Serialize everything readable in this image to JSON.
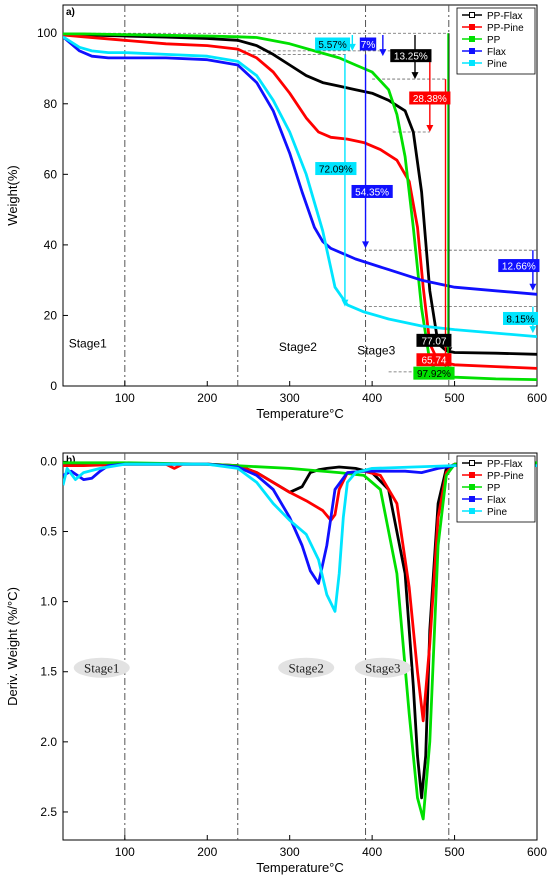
{
  "chart_data": [
    {
      "type": "line",
      "panel_label": "a)",
      "xlabel": "Temperature°C",
      "ylabel": "Weight(%)",
      "xlim": [
        25,
        600
      ],
      "ylim": [
        0,
        108
      ],
      "xticks": [
        100,
        200,
        300,
        400,
        500,
        600
      ],
      "yticks": [
        0,
        20,
        40,
        60,
        80,
        100
      ],
      "grid": false,
      "legend_position": "top-right",
      "stage_lines_x": [
        100,
        237,
        392,
        493
      ],
      "stages": [
        {
          "label": "Stage1",
          "x": 55,
          "y": 12
        },
        {
          "label": "Stage2",
          "x": 310,
          "y": 11
        },
        {
          "label": "Stage3",
          "x": 405,
          "y": 10
        }
      ],
      "series": [
        {
          "name": "PP-Flax",
          "color": "#000000",
          "x": [
            25,
            50,
            100,
            150,
            200,
            237,
            260,
            280,
            300,
            320,
            340,
            360,
            380,
            400,
            420,
            440,
            450,
            460,
            470,
            480,
            490,
            500,
            550,
            600
          ],
          "y": [
            99.7,
            99.5,
            99.2,
            98.9,
            98.5,
            98,
            96.5,
            94,
            91,
            88,
            86,
            85,
            84,
            83,
            81,
            78,
            72,
            55,
            27,
            12,
            10,
            9.5,
            9.3,
            9
          ]
        },
        {
          "name": "PP-Pine",
          "color": "#ff0000",
          "x": [
            25,
            50,
            100,
            150,
            200,
            237,
            260,
            280,
            300,
            320,
            335,
            350,
            370,
            390,
            410,
            430,
            445,
            455,
            462,
            470,
            480,
            500,
            550,
            600
          ],
          "y": [
            99.5,
            99,
            98,
            97,
            96.5,
            95.5,
            93,
            89,
            83,
            76,
            72,
            70.5,
            70,
            69,
            67,
            64,
            58,
            45,
            28,
            12,
            7,
            6,
            5.5,
            5
          ]
        },
        {
          "name": "PP",
          "color": "#00e000",
          "x": [
            25,
            50,
            100,
            150,
            200,
            237,
            260,
            300,
            330,
            360,
            380,
            400,
            420,
            430,
            440,
            450,
            460,
            470,
            480,
            490,
            500,
            550,
            600
          ],
          "y": [
            99.8,
            99.8,
            99.6,
            99.4,
            99.2,
            99,
            98.8,
            97,
            95,
            93,
            91,
            89,
            84,
            77,
            65,
            45,
            22,
            7,
            3.5,
            2.7,
            2.5,
            2,
            1.8
          ]
        },
        {
          "name": "Flax",
          "color": "#1010ff",
          "x": [
            25,
            35,
            45,
            60,
            80,
            100,
            150,
            200,
            237,
            260,
            280,
            300,
            315,
            330,
            340,
            350,
            380,
            420,
            460,
            500,
            550,
            600
          ],
          "y": [
            99,
            97,
            95,
            93.5,
            93,
            93,
            93,
            92.5,
            91,
            86,
            78,
            66,
            55,
            45,
            41,
            39,
            36,
            33,
            30,
            28,
            27,
            26
          ]
        },
        {
          "name": "Pine",
          "color": "#00e5ff",
          "x": [
            25,
            35,
            45,
            60,
            80,
            100,
            150,
            200,
            237,
            260,
            280,
            300,
            320,
            340,
            355,
            370,
            390,
            420,
            460,
            500,
            550,
            600
          ],
          "y": [
            99,
            97.5,
            96,
            95,
            94.5,
            94.5,
            94,
            93.5,
            92,
            88,
            81,
            72,
            60,
            44,
            28,
            23,
            21,
            19,
            17,
            16,
            15,
            14
          ]
        }
      ],
      "reference_lines": [
        {
          "y": 100,
          "x": [
            25,
            490
          ]
        },
        {
          "y": 95,
          "x": [
            237,
            430
          ]
        },
        {
          "y": 94,
          "x": [
            237,
            370
          ]
        },
        {
          "y": 87,
          "x": [
            400,
            490
          ]
        },
        {
          "y": 72,
          "x": [
            425,
            470
          ]
        },
        {
          "y": 38.5,
          "x": [
            390,
            600
          ]
        },
        {
          "y": 22.5,
          "x": [
            390,
            600
          ]
        },
        {
          "y": 4,
          "x": [
            420,
            500
          ]
        }
      ],
      "arrows": [
        {
          "color": "#00e5ff",
          "x": 376,
          "y_from": 99.5,
          "y_to": 95
        },
        {
          "color": "#1010ff",
          "x": 413,
          "y_from": 99.5,
          "y_to": 93.5
        },
        {
          "color": "#000000",
          "x": 452,
          "y_from": 99.5,
          "y_to": 87
        },
        {
          "color": "#ff0000",
          "x": 470,
          "y_from": 94,
          "y_to": 72
        },
        {
          "color": "#1010ff",
          "x": 392,
          "y_from": 94,
          "y_to": 39
        },
        {
          "color": "#00e5ff",
          "x": 367,
          "y_from": 94,
          "y_to": 22.5
        },
        {
          "color": "#1010ff",
          "x": 595,
          "y_from": 38.5,
          "y_to": 27
        },
        {
          "color": "#00e5ff",
          "x": 595,
          "y_from": 22.5,
          "y_to": 15
        },
        {
          "color": "#000000",
          "x": 493,
          "y_from": 100,
          "y_to": 9
        },
        {
          "color": "#ff0000",
          "x": 489,
          "y_from": 87,
          "y_to": 5
        },
        {
          "color": "#00e000",
          "x": 492,
          "y_from": 100,
          "y_to": 2.5
        }
      ],
      "annotations": [
        {
          "text": "5.57%",
          "bg": "#00e5ff",
          "fg": "#000000",
          "x": 352,
          "y": 96.8
        },
        {
          "text": "7%",
          "bg": "#1010ff",
          "fg": "#ffffff",
          "x": 395,
          "y": 96.8
        },
        {
          "text": "13.25%",
          "bg": "#000000",
          "fg": "#ffffff",
          "x": 447,
          "y": 93.5
        },
        {
          "text": "28.38%",
          "bg": "#ff0000",
          "fg": "#ffffff",
          "x": 470,
          "y": 81.5
        },
        {
          "text": "72.09%",
          "bg": "#00e5ff",
          "fg": "#000000",
          "x": 356,
          "y": 61.5
        },
        {
          "text": "54.35%",
          "bg": "#1010ff",
          "fg": "#ffffff",
          "x": 400,
          "y": 55
        },
        {
          "text": "12.66%",
          "bg": "#1010ff",
          "fg": "#ffffff",
          "x": 578,
          "y": 34
        },
        {
          "text": "8.15%",
          "bg": "#00e5ff",
          "fg": "#000000",
          "x": 580,
          "y": 19
        },
        {
          "text": "77.07",
          "bg": "#000000",
          "fg": "#ffffff",
          "x": 475,
          "y": 12.8
        },
        {
          "text": "65.74",
          "bg": "#ff0000",
          "fg": "#ffffff",
          "x": 475,
          "y": 7.3
        },
        {
          "text": "97.92%",
          "bg": "#00e000",
          "fg": "#000000",
          "x": 475,
          "y": 3.5
        }
      ]
    },
    {
      "type": "line",
      "panel_label": "b)",
      "xlabel": "Temperature°C",
      "ylabel": "Deriv. Weight (%/°C)",
      "xlim": [
        25,
        600
      ],
      "ylim": [
        -0.06,
        2.7
      ],
      "y_inverted": true,
      "xticks": [
        100,
        200,
        300,
        400,
        500,
        600
      ],
      "yticks": [
        0.0,
        0.5,
        1.0,
        1.5,
        2.0,
        2.5
      ],
      "grid": false,
      "legend_position": "top-right",
      "stage_lines_x": [
        100,
        237,
        392,
        493
      ],
      "stages": [
        {
          "label": "Stage1",
          "x": 72,
          "y": 1.5
        },
        {
          "label": "Stage2",
          "x": 320,
          "y": 1.5
        },
        {
          "label": "Stage3",
          "x": 413,
          "y": 1.5
        }
      ],
      "series": [
        {
          "name": "PP-Flax",
          "color": "#000000",
          "x": [
            25,
            50,
            100,
            150,
            200,
            237,
            260,
            280,
            300,
            315,
            325,
            335,
            345,
            360,
            380,
            400,
            420,
            440,
            450,
            455,
            460,
            465,
            470,
            480,
            490,
            500,
            550,
            600
          ],
          "y": [
            0.03,
            0.02,
            0.02,
            0.02,
            0.02,
            0.03,
            0.08,
            0.15,
            0.22,
            0.18,
            0.08,
            0.06,
            0.05,
            0.04,
            0.05,
            0.08,
            0.2,
            0.8,
            1.6,
            2.1,
            2.4,
            2.1,
            1.2,
            0.3,
            0.05,
            0.02,
            0.02,
            0.02
          ]
        },
        {
          "name": "PP-Pine",
          "color": "#ff0000",
          "x": [
            25,
            50,
            100,
            150,
            160,
            170,
            200,
            237,
            260,
            280,
            300,
            320,
            340,
            350,
            355,
            360,
            370,
            390,
            410,
            430,
            445,
            455,
            462,
            470,
            480,
            490,
            500,
            550,
            600
          ],
          "y": [
            0.03,
            0.03,
            0.02,
            0.02,
            0.05,
            0.02,
            0.02,
            0.03,
            0.08,
            0.15,
            0.22,
            0.28,
            0.35,
            0.42,
            0.38,
            0.2,
            0.08,
            0.07,
            0.1,
            0.3,
            0.9,
            1.5,
            1.85,
            1.3,
            0.4,
            0.08,
            0.02,
            0.02,
            0.02
          ]
        },
        {
          "name": "PP",
          "color": "#00e000",
          "x": [
            25,
            100,
            200,
            300,
            360,
            390,
            410,
            430,
            445,
            455,
            462,
            470,
            480,
            490,
            500,
            550,
            600
          ],
          "y": [
            0.01,
            0.01,
            0.02,
            0.05,
            0.08,
            0.1,
            0.2,
            0.8,
            1.8,
            2.4,
            2.55,
            2.0,
            0.6,
            0.1,
            0.02,
            0.01,
            0.01
          ]
        },
        {
          "name": "Flax",
          "color": "#1010ff",
          "x": [
            25,
            35,
            50,
            60,
            70,
            80,
            100,
            150,
            200,
            237,
            260,
            280,
            300,
            315,
            325,
            335,
            345,
            355,
            370,
            390,
            420,
            440,
            460,
            480,
            500,
            540,
            545,
            550,
            600
          ],
          "y": [
            0.1,
            0.07,
            0.13,
            0.12,
            0.07,
            0.03,
            0.02,
            0.02,
            0.02,
            0.04,
            0.1,
            0.2,
            0.4,
            0.6,
            0.78,
            0.87,
            0.6,
            0.2,
            0.08,
            0.07,
            0.07,
            0.07,
            0.08,
            0.05,
            0.03,
            0.03,
            0.05,
            0.03,
            0.03
          ]
        },
        {
          "name": "Pine",
          "color": "#00e5ff",
          "x": [
            25,
            30,
            40,
            50,
            70,
            100,
            150,
            200,
            237,
            260,
            280,
            300,
            320,
            335,
            345,
            355,
            360,
            365,
            370,
            380,
            400,
            450,
            500,
            550,
            600
          ],
          "y": [
            0.17,
            0.05,
            0.13,
            0.08,
            0.05,
            0.02,
            0.02,
            0.02,
            0.05,
            0.15,
            0.3,
            0.42,
            0.52,
            0.7,
            0.95,
            1.07,
            0.8,
            0.4,
            0.15,
            0.08,
            0.05,
            0.04,
            0.03,
            0.03,
            0.03
          ]
        }
      ]
    }
  ]
}
